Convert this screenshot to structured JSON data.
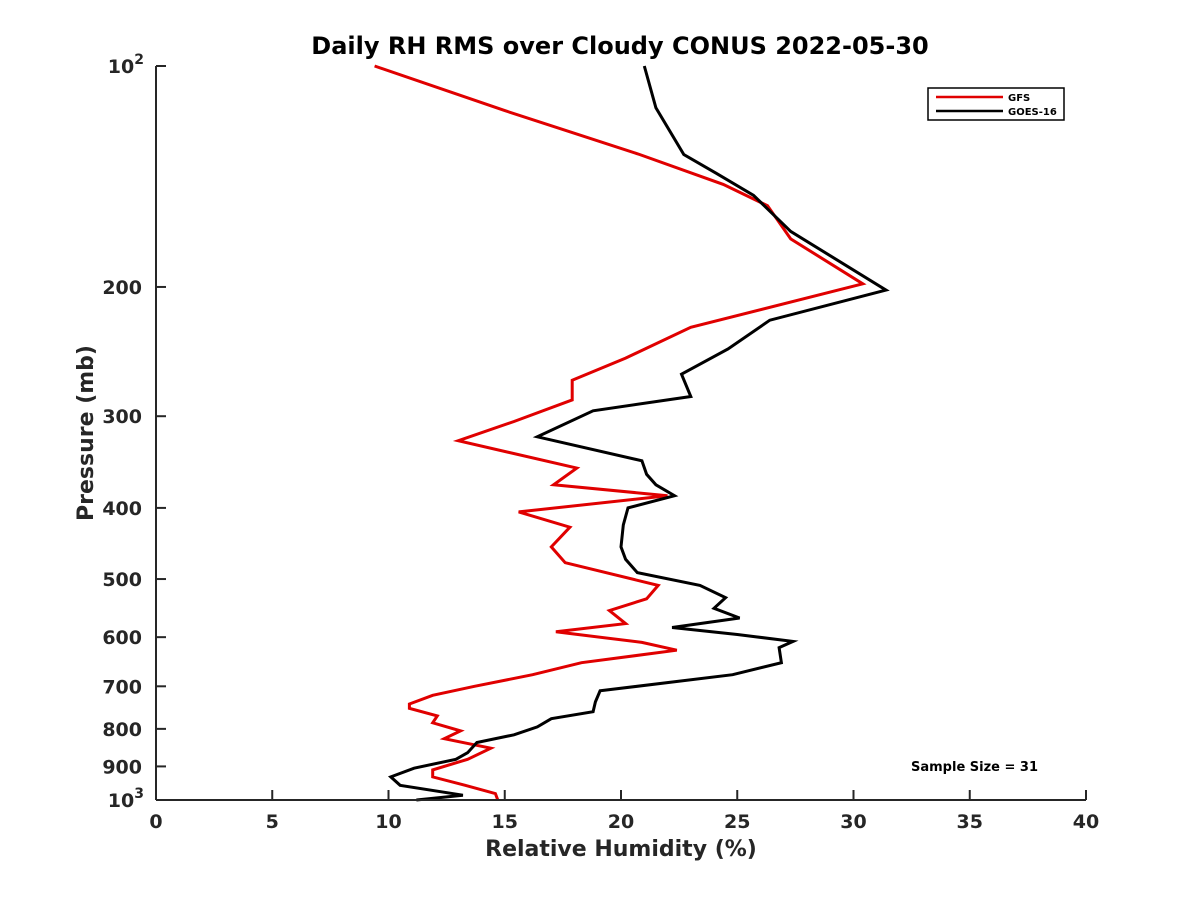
{
  "chart_data": {
    "type": "line",
    "title": "Daily RH RMS over Cloudy CONUS 2022-05-30",
    "xlabel": "Relative Humidity (%)",
    "ylabel": "Pressure (mb)",
    "xlim": [
      0,
      40
    ],
    "ylim": [
      100,
      1000
    ],
    "y_scale": "log",
    "y_reversed": true,
    "x_ticks": [
      "0",
      "5",
      "10",
      "15",
      "20",
      "25",
      "30",
      "35",
      "40"
    ],
    "y_ticks": [
      {
        "value": 100,
        "base": "10",
        "exp": "2"
      },
      {
        "value": 200,
        "label": "200"
      },
      {
        "value": 300,
        "label": "300"
      },
      {
        "value": 400,
        "label": "400"
      },
      {
        "value": 500,
        "label": "500"
      },
      {
        "value": 600,
        "label": "600"
      },
      {
        "value": 700,
        "label": "700"
      },
      {
        "value": 800,
        "label": "800"
      },
      {
        "value": 900,
        "label": "900"
      },
      {
        "value": 1000,
        "base": "10",
        "exp": "3"
      }
    ],
    "grid": false,
    "legend_position": "top-right",
    "series": [
      {
        "name": "GFS",
        "color": "#e00000",
        "x": [
          9.4,
          15.0,
          20.8,
          24.4,
          26.3,
          27.3,
          30.4,
          23.0,
          20.2,
          17.9,
          17.9,
          15.4,
          13.0,
          18.1,
          17.1,
          22.0,
          15.6,
          17.8,
          17.0,
          17.6,
          21.6,
          21.1,
          19.5,
          20.2,
          17.2,
          20.9,
          22.4,
          18.3,
          16.2,
          13.7,
          11.9,
          10.9,
          10.9,
          12.1,
          11.9,
          13.1,
          12.4,
          14.4,
          13.4,
          11.9,
          11.9,
          13.3,
          14.6,
          14.7
        ],
        "y": [
          100,
          115,
          132,
          145,
          155,
          172,
          198,
          227,
          250,
          268,
          285,
          305,
          324,
          353,
          372,
          385,
          405,
          425,
          452,
          475,
          510,
          532,
          552,
          575,
          590,
          610,
          625,
          650,
          675,
          700,
          720,
          740,
          750,
          768,
          785,
          805,
          825,
          850,
          880,
          910,
          930,
          955,
          980,
          1000
        ],
        "visible": true
      },
      {
        "name": "GOES-16",
        "color": "#000000",
        "x": [
          21.0,
          21.5,
          22.7,
          24.1,
          25.7,
          27.3,
          31.4,
          26.4,
          24.6,
          22.6,
          23.0,
          18.8,
          16.4,
          20.9,
          21.1,
          21.5,
          22.3,
          20.3,
          20.1,
          20.0,
          20.2,
          20.7,
          23.4,
          24.5,
          24.0,
          25.1,
          22.2,
          25.0,
          27.4,
          26.8,
          26.9,
          24.8,
          19.1,
          18.9,
          18.8,
          17.0,
          16.4,
          15.4,
          13.8,
          13.4,
          12.9,
          11.1,
          10.1,
          10.5,
          13.2,
          11.2
        ],
        "y": [
          100,
          114,
          132,
          140,
          150,
          168,
          202,
          222,
          243,
          263,
          282,
          295,
          320,
          345,
          360,
          372,
          385,
          400,
          422,
          452,
          470,
          490,
          510,
          530,
          548,
          565,
          582,
          595,
          608,
          620,
          650,
          675,
          710,
          735,
          758,
          775,
          795,
          815,
          835,
          862,
          880,
          905,
          930,
          955,
          985,
          1000
        ],
        "visible": true
      }
    ],
    "annotations": [
      "Sample Size = 31"
    ]
  }
}
